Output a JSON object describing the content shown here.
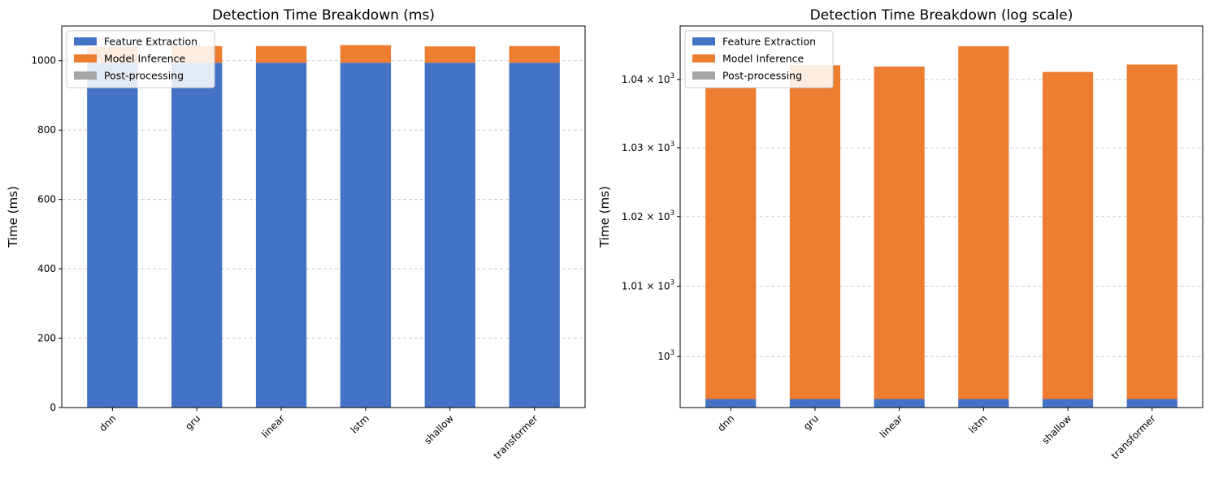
{
  "colors": {
    "feature_extraction": "#4472c4",
    "model_inference": "#ed7d31",
    "post_processing": "#a5a5a5",
    "grid": "#c8c8c8"
  },
  "chart_data": [
    {
      "type": "bar",
      "stacked": true,
      "title": "Detection Time Breakdown (ms)",
      "xlabel": "",
      "ylabel": "Time (ms)",
      "ylim": [
        0,
        1100
      ],
      "yticks": [
        0,
        200,
        400,
        600,
        800,
        1000
      ],
      "ytick_labels": [
        "0",
        "200",
        "400",
        "600",
        "800",
        "1000"
      ],
      "grid": "y-dashed",
      "legend": "upper-left",
      "categories": [
        "dnn",
        "gru",
        "linear",
        "lstm",
        "shallow",
        "transformer"
      ],
      "series": [
        {
          "name": "Feature Extraction",
          "color_key": "feature_extraction",
          "values": [
            994,
            994,
            994,
            994,
            994,
            994
          ]
        },
        {
          "name": "Model Inference",
          "color_key": "model_inference",
          "values": [
            44.8,
            48.1,
            47.9,
            50.9,
            47.1,
            48.2
          ]
        },
        {
          "name": "Post-processing",
          "color_key": "post_processing",
          "values": [
            0,
            0,
            0,
            0,
            0,
            0
          ]
        }
      ]
    },
    {
      "type": "bar",
      "stacked": true,
      "scale": "log",
      "title": "Detection Time Breakdown (log scale)",
      "xlabel": "",
      "ylabel": "Time (ms)",
      "ylim": [
        992.8,
        1047.9
      ],
      "yticks": [
        1000,
        1010,
        1020,
        1030,
        1040
      ],
      "ytick_labels": [
        {
          "base": "10",
          "mantissa": "",
          "exp": "3"
        },
        {
          "base": "10",
          "mantissa": "1.01 × ",
          "exp": "3"
        },
        {
          "base": "10",
          "mantissa": "1.02 × ",
          "exp": "3"
        },
        {
          "base": "10",
          "mantissa": "1.03 × ",
          "exp": "3"
        },
        {
          "base": "10",
          "mantissa": "1.04 × ",
          "exp": "3"
        }
      ],
      "grid": "y-dashed",
      "legend": "upper-left",
      "categories": [
        "dnn",
        "gru",
        "linear",
        "lstm",
        "shallow",
        "transformer"
      ],
      "series": [
        {
          "name": "Feature Extraction",
          "color_key": "feature_extraction",
          "values": [
            994,
            994,
            994,
            994,
            994,
            994
          ]
        },
        {
          "name": "Model Inference",
          "color_key": "model_inference",
          "values": [
            44.8,
            48.1,
            47.9,
            50.9,
            47.1,
            48.2
          ]
        },
        {
          "name": "Post-processing",
          "color_key": "post_processing",
          "values": [
            0,
            0,
            0,
            0,
            0,
            0
          ]
        }
      ]
    }
  ]
}
